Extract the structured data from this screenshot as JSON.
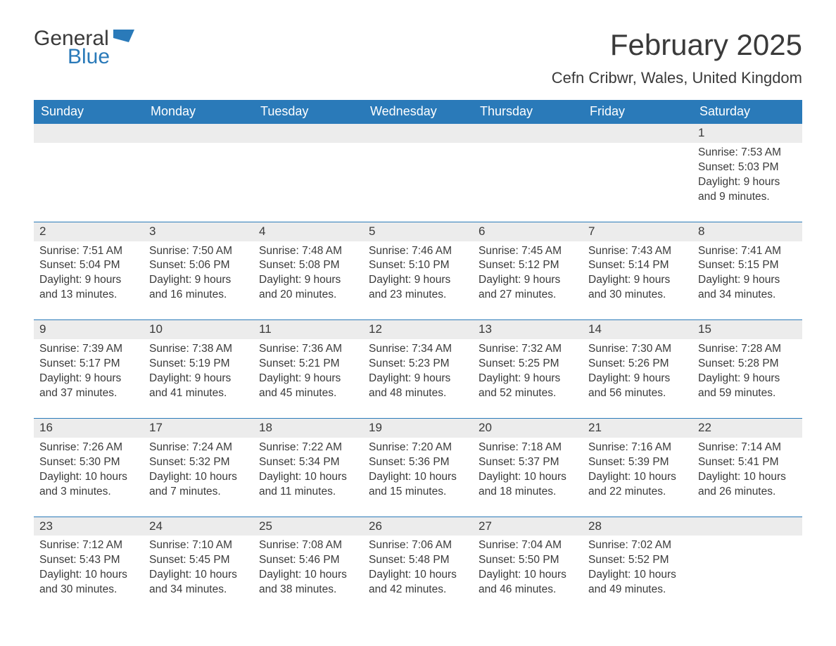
{
  "brand": {
    "general": "General",
    "blue": "Blue"
  },
  "title": "February 2025",
  "location": "Cefn Cribwr, Wales, United Kingdom",
  "colors": {
    "header_bg": "#2a7ab9",
    "header_text": "#ffffff",
    "band_bg": "#ececec",
    "rule": "#2a7ab9",
    "text": "#3a3a3a",
    "page_bg": "#ffffff",
    "logo_blue": "#2a7ab9"
  },
  "weekdays": [
    "Sunday",
    "Monday",
    "Tuesday",
    "Wednesday",
    "Thursday",
    "Friday",
    "Saturday"
  ],
  "weeks": [
    [
      null,
      null,
      null,
      null,
      null,
      null,
      {
        "n": "1",
        "sunrise": "Sunrise: 7:53 AM",
        "sunset": "Sunset: 5:03 PM",
        "day1": "Daylight: 9 hours",
        "day2": "and 9 minutes."
      }
    ],
    [
      {
        "n": "2",
        "sunrise": "Sunrise: 7:51 AM",
        "sunset": "Sunset: 5:04 PM",
        "day1": "Daylight: 9 hours",
        "day2": "and 13 minutes."
      },
      {
        "n": "3",
        "sunrise": "Sunrise: 7:50 AM",
        "sunset": "Sunset: 5:06 PM",
        "day1": "Daylight: 9 hours",
        "day2": "and 16 minutes."
      },
      {
        "n": "4",
        "sunrise": "Sunrise: 7:48 AM",
        "sunset": "Sunset: 5:08 PM",
        "day1": "Daylight: 9 hours",
        "day2": "and 20 minutes."
      },
      {
        "n": "5",
        "sunrise": "Sunrise: 7:46 AM",
        "sunset": "Sunset: 5:10 PM",
        "day1": "Daylight: 9 hours",
        "day2": "and 23 minutes."
      },
      {
        "n": "6",
        "sunrise": "Sunrise: 7:45 AM",
        "sunset": "Sunset: 5:12 PM",
        "day1": "Daylight: 9 hours",
        "day2": "and 27 minutes."
      },
      {
        "n": "7",
        "sunrise": "Sunrise: 7:43 AM",
        "sunset": "Sunset: 5:14 PM",
        "day1": "Daylight: 9 hours",
        "day2": "and 30 minutes."
      },
      {
        "n": "8",
        "sunrise": "Sunrise: 7:41 AM",
        "sunset": "Sunset: 5:15 PM",
        "day1": "Daylight: 9 hours",
        "day2": "and 34 minutes."
      }
    ],
    [
      {
        "n": "9",
        "sunrise": "Sunrise: 7:39 AM",
        "sunset": "Sunset: 5:17 PM",
        "day1": "Daylight: 9 hours",
        "day2": "and 37 minutes."
      },
      {
        "n": "10",
        "sunrise": "Sunrise: 7:38 AM",
        "sunset": "Sunset: 5:19 PM",
        "day1": "Daylight: 9 hours",
        "day2": "and 41 minutes."
      },
      {
        "n": "11",
        "sunrise": "Sunrise: 7:36 AM",
        "sunset": "Sunset: 5:21 PM",
        "day1": "Daylight: 9 hours",
        "day2": "and 45 minutes."
      },
      {
        "n": "12",
        "sunrise": "Sunrise: 7:34 AM",
        "sunset": "Sunset: 5:23 PM",
        "day1": "Daylight: 9 hours",
        "day2": "and 48 minutes."
      },
      {
        "n": "13",
        "sunrise": "Sunrise: 7:32 AM",
        "sunset": "Sunset: 5:25 PM",
        "day1": "Daylight: 9 hours",
        "day2": "and 52 minutes."
      },
      {
        "n": "14",
        "sunrise": "Sunrise: 7:30 AM",
        "sunset": "Sunset: 5:26 PM",
        "day1": "Daylight: 9 hours",
        "day2": "and 56 minutes."
      },
      {
        "n": "15",
        "sunrise": "Sunrise: 7:28 AM",
        "sunset": "Sunset: 5:28 PM",
        "day1": "Daylight: 9 hours",
        "day2": "and 59 minutes."
      }
    ],
    [
      {
        "n": "16",
        "sunrise": "Sunrise: 7:26 AM",
        "sunset": "Sunset: 5:30 PM",
        "day1": "Daylight: 10 hours",
        "day2": "and 3 minutes."
      },
      {
        "n": "17",
        "sunrise": "Sunrise: 7:24 AM",
        "sunset": "Sunset: 5:32 PM",
        "day1": "Daylight: 10 hours",
        "day2": "and 7 minutes."
      },
      {
        "n": "18",
        "sunrise": "Sunrise: 7:22 AM",
        "sunset": "Sunset: 5:34 PM",
        "day1": "Daylight: 10 hours",
        "day2": "and 11 minutes."
      },
      {
        "n": "19",
        "sunrise": "Sunrise: 7:20 AM",
        "sunset": "Sunset: 5:36 PM",
        "day1": "Daylight: 10 hours",
        "day2": "and 15 minutes."
      },
      {
        "n": "20",
        "sunrise": "Sunrise: 7:18 AM",
        "sunset": "Sunset: 5:37 PM",
        "day1": "Daylight: 10 hours",
        "day2": "and 18 minutes."
      },
      {
        "n": "21",
        "sunrise": "Sunrise: 7:16 AM",
        "sunset": "Sunset: 5:39 PM",
        "day1": "Daylight: 10 hours",
        "day2": "and 22 minutes."
      },
      {
        "n": "22",
        "sunrise": "Sunrise: 7:14 AM",
        "sunset": "Sunset: 5:41 PM",
        "day1": "Daylight: 10 hours",
        "day2": "and 26 minutes."
      }
    ],
    [
      {
        "n": "23",
        "sunrise": "Sunrise: 7:12 AM",
        "sunset": "Sunset: 5:43 PM",
        "day1": "Daylight: 10 hours",
        "day2": "and 30 minutes."
      },
      {
        "n": "24",
        "sunrise": "Sunrise: 7:10 AM",
        "sunset": "Sunset: 5:45 PM",
        "day1": "Daylight: 10 hours",
        "day2": "and 34 minutes."
      },
      {
        "n": "25",
        "sunrise": "Sunrise: 7:08 AM",
        "sunset": "Sunset: 5:46 PM",
        "day1": "Daylight: 10 hours",
        "day2": "and 38 minutes."
      },
      {
        "n": "26",
        "sunrise": "Sunrise: 7:06 AM",
        "sunset": "Sunset: 5:48 PM",
        "day1": "Daylight: 10 hours",
        "day2": "and 42 minutes."
      },
      {
        "n": "27",
        "sunrise": "Sunrise: 7:04 AM",
        "sunset": "Sunset: 5:50 PM",
        "day1": "Daylight: 10 hours",
        "day2": "and 46 minutes."
      },
      {
        "n": "28",
        "sunrise": "Sunrise: 7:02 AM",
        "sunset": "Sunset: 5:52 PM",
        "day1": "Daylight: 10 hours",
        "day2": "and 49 minutes."
      },
      null
    ]
  ]
}
